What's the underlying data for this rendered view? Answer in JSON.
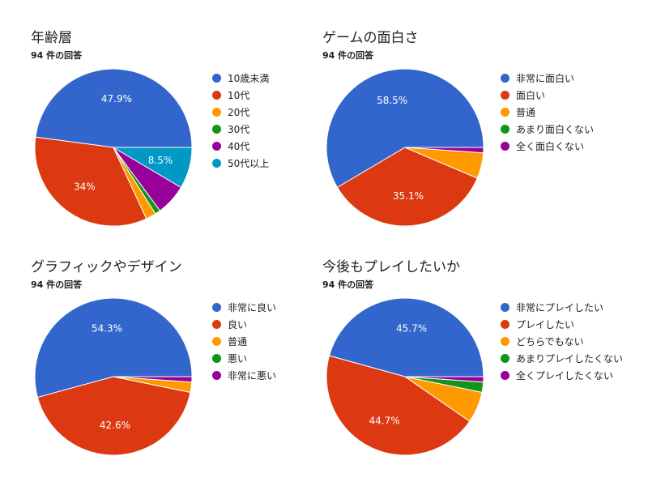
{
  "palette": [
    "#3366cc",
    "#dc3912",
    "#ff9900",
    "#109618",
    "#990099",
    "#0099c6"
  ],
  "chart_data": [
    {
      "type": "pie",
      "title": "年齢層",
      "subtitle": "94 件の回答",
      "labels": [
        "10歳未満",
        "10代",
        "20代",
        "30代",
        "40代",
        "50代以上"
      ],
      "values": [
        47.9,
        34.0,
        2.1,
        1.1,
        6.4,
        8.5
      ],
      "data_labels": [
        "47.9%",
        "34%",
        "",
        "",
        "",
        "8.5%"
      ],
      "legend": "right"
    },
    {
      "type": "pie",
      "title": "ゲームの面白さ",
      "subtitle": "94 件の回答",
      "labels": [
        "非常に面白い",
        "面白い",
        "普通",
        "あまり面白くない",
        "全く面白くない"
      ],
      "values": [
        58.5,
        35.1,
        5.3,
        0,
        1.1
      ],
      "data_labels": [
        "58.5%",
        "35.1%",
        "",
        "",
        ""
      ],
      "legend": "right"
    },
    {
      "type": "pie",
      "title": "グラフィックやデザイン",
      "subtitle": "94 件の回答",
      "labels": [
        "非常に良い",
        "良い",
        "普通",
        "悪い",
        "非常に悪い"
      ],
      "values": [
        54.3,
        42.6,
        2.1,
        0,
        1.1
      ],
      "data_labels": [
        "54.3%",
        "42.6%",
        "",
        "",
        ""
      ],
      "legend": "right"
    },
    {
      "type": "pie",
      "title": "今後もプレイしたいか",
      "subtitle": "94 件の回答",
      "labels": [
        "非常にプレイしたい",
        "プレイしたい",
        "どちらでもない",
        "あまりプレイしたくない",
        "全くプレイしたくない"
      ],
      "values": [
        45.7,
        44.7,
        6.4,
        2.1,
        1.1
      ],
      "data_labels": [
        "45.7%",
        "44.7%",
        "",
        "",
        ""
      ],
      "legend": "right"
    }
  ]
}
